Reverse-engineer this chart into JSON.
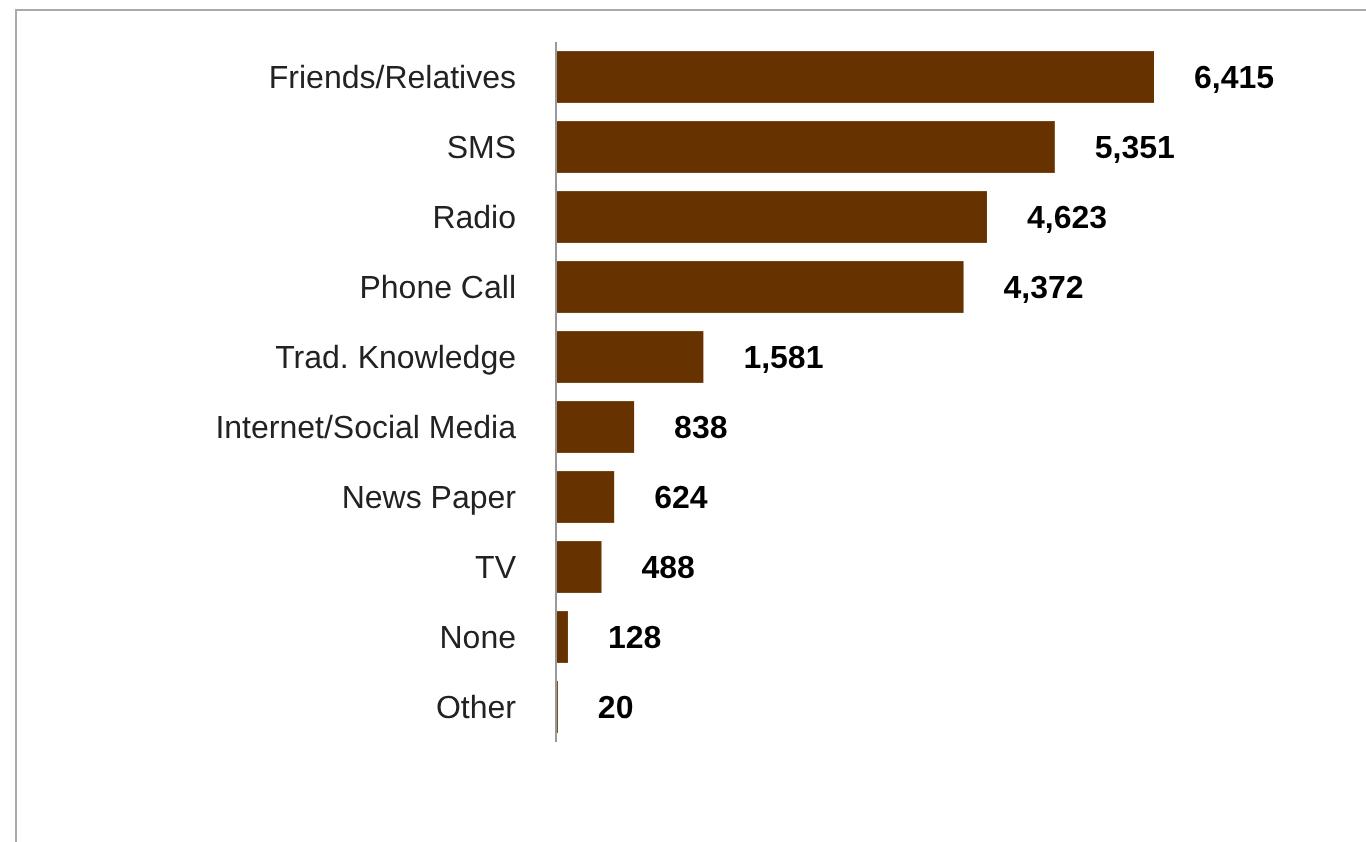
{
  "chart_data": {
    "type": "bar",
    "orientation": "horizontal",
    "categories": [
      "Friends/Relatives",
      "SMS",
      "Radio",
      "Phone Call",
      "Trad. Knowledge",
      "Internet/Social Media",
      "News Paper",
      "TV",
      "None",
      "Other"
    ],
    "values": [
      6415,
      5351,
      4623,
      4372,
      1581,
      838,
      624,
      488,
      128,
      20
    ],
    "color": "#663300",
    "data_labels": true,
    "value_labels": [
      "6,415",
      "5,351",
      "4,623",
      "4,372",
      "1,581",
      "838",
      "624",
      "488",
      "128",
      "20"
    ]
  }
}
